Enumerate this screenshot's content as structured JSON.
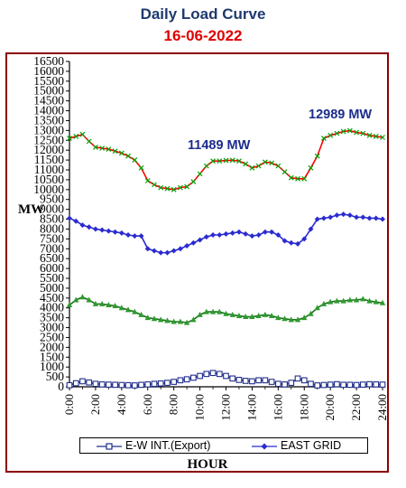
{
  "chart_data": {
    "type": "line",
    "title": "Daily Load Curve",
    "subtitle": "16-06-2022",
    "xlabel": "HOUR",
    "ylabel": "MW",
    "ylim": [
      0,
      16500
    ],
    "xlim": [
      0,
      24
    ],
    "yticks": [
      0,
      500,
      1000,
      1500,
      2000,
      2500,
      3000,
      3500,
      4000,
      4500,
      5000,
      5500,
      6000,
      6500,
      7000,
      7500,
      8000,
      8500,
      9000,
      9500,
      10000,
      10500,
      11000,
      11500,
      12000,
      12500,
      13000,
      13500,
      14000,
      14500,
      15000,
      15500,
      16000,
      16500
    ],
    "ytick_labels": [
      "0",
      "500",
      "1000",
      "1500",
      "2000",
      "2500",
      "3000",
      "3500",
      "4000",
      "4500",
      "5000",
      "5500",
      "6000",
      "6500",
      "7000",
      "7500",
      "8000",
      "8500",
      "9000",
      "9500",
      "10000",
      "10500",
      "11000",
      "11500",
      "12000",
      "12500",
      "13000",
      "13500",
      "14000",
      "14500",
      "15000",
      "15500",
      "16000",
      "16500"
    ],
    "xticks": [
      0,
      2,
      4,
      6,
      8,
      10,
      12,
      14,
      16,
      18,
      20,
      22,
      24
    ],
    "xtick_labels": [
      "0:00",
      "2:00",
      "4:00",
      "6:00",
      "8:00",
      "10:00",
      "12:00",
      "14:00",
      "16:00",
      "18:00",
      "20:00",
      "22:00",
      "24:00"
    ],
    "x": [
      0,
      0.5,
      1,
      1.5,
      2,
      2.5,
      3,
      3.5,
      4,
      4.5,
      5,
      5.5,
      6,
      6.5,
      7,
      7.5,
      8,
      8.5,
      9,
      9.5,
      10,
      10.5,
      11,
      11.5,
      12,
      12.5,
      13,
      13.5,
      14,
      14.5,
      15,
      15.5,
      16,
      16.5,
      17,
      17.5,
      18,
      18.5,
      19,
      19.5,
      20,
      20.5,
      21,
      21.5,
      22,
      22.5,
      23,
      23.5,
      24
    ],
    "series": [
      {
        "name": "",
        "color": "#ff0000",
        "marker": "x",
        "marker_color": "#00a000",
        "values": [
          12600,
          12700,
          12800,
          12450,
          12150,
          12100,
          12050,
          11950,
          11850,
          11700,
          11500,
          11100,
          10450,
          10250,
          10100,
          10050,
          10000,
          10100,
          10150,
          10400,
          10800,
          11200,
          11450,
          11450,
          11480,
          11489,
          11450,
          11300,
          11100,
          11200,
          11400,
          11350,
          11200,
          10900,
          10600,
          10550,
          10550,
          11100,
          11700,
          12600,
          12750,
          12850,
          12950,
          12989,
          12900,
          12850,
          12750,
          12700,
          12650
        ]
      },
      {
        "name": "EAST GRID",
        "color": "#2b2bd0",
        "marker": "diamond",
        "values": [
          8550,
          8400,
          8200,
          8100,
          8000,
          7950,
          7900,
          7850,
          7800,
          7700,
          7650,
          7650,
          7000,
          6900,
          6800,
          6800,
          6900,
          7000,
          7150,
          7300,
          7450,
          7600,
          7700,
          7700,
          7750,
          7800,
          7850,
          7750,
          7650,
          7700,
          7850,
          7850,
          7700,
          7400,
          7300,
          7250,
          7500,
          8000,
          8500,
          8550,
          8600,
          8700,
          8750,
          8700,
          8600,
          8600,
          8550,
          8550,
          8500
        ]
      },
      {
        "name": "",
        "color": "#1a6e1a",
        "marker": "triangle",
        "marker_color": "#2e9a2e",
        "values": [
          4150,
          4400,
          4550,
          4400,
          4200,
          4200,
          4150,
          4100,
          4000,
          3900,
          3800,
          3650,
          3500,
          3450,
          3400,
          3350,
          3300,
          3300,
          3250,
          3400,
          3650,
          3800,
          3800,
          3800,
          3700,
          3650,
          3600,
          3550,
          3550,
          3600,
          3650,
          3600,
          3500,
          3450,
          3400,
          3400,
          3500,
          3700,
          4000,
          4200,
          4300,
          4350,
          4350,
          4400,
          4400,
          4450,
          4350,
          4300,
          4250
        ]
      },
      {
        "name": "E-W INT.(Export)",
        "color": "#1f2d8a",
        "marker": "square-open",
        "values": [
          80,
          180,
          280,
          220,
          150,
          120,
          110,
          100,
          90,
          80,
          70,
          100,
          120,
          150,
          170,
          200,
          250,
          330,
          380,
          460,
          550,
          650,
          700,
          650,
          550,
          420,
          350,
          300,
          280,
          330,
          330,
          250,
          150,
          120,
          200,
          420,
          330,
          150,
          70,
          90,
          110,
          130,
          100,
          100,
          90,
          110,
          130,
          120,
          110
        ]
      }
    ],
    "annotations": [
      "11489 MW",
      "12989 MW"
    ],
    "legend": {
      "position": "bottom",
      "entries": [
        "E-W INT.(Export)",
        "EAST GRID"
      ]
    },
    "grid": false
  }
}
